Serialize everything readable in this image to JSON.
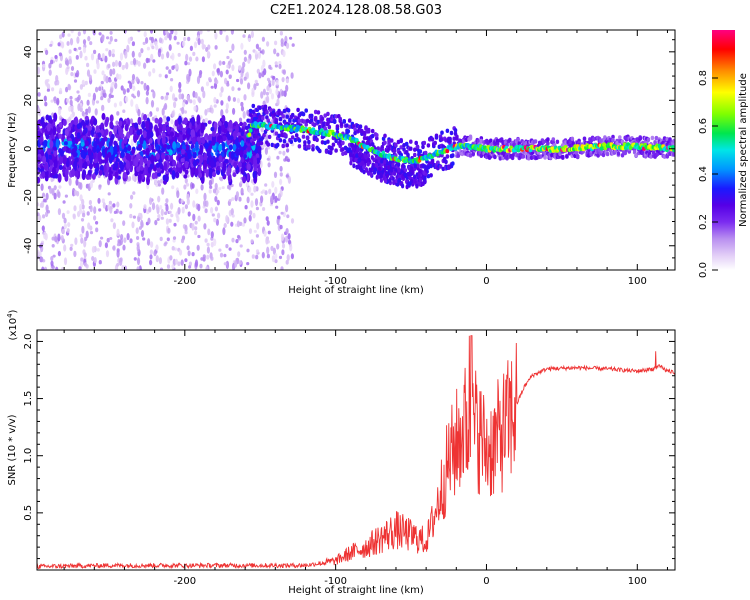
{
  "title": "C2E1.2024.128.08.58.G03",
  "chart_data": [
    {
      "type": "heatmap",
      "panel": "spectrogram",
      "xlabel": "Height of straight line (km)",
      "ylabel": "Frequency (Hz)",
      "xlim": [
        -298,
        125
      ],
      "ylim": [
        -50,
        49
      ],
      "xticks": [
        -200,
        -100,
        0,
        100
      ],
      "yticks": [
        -40,
        -20,
        0,
        20,
        40
      ],
      "colorbar": {
        "label": "Normalized spectral amplitude",
        "range": [
          0,
          1
        ],
        "ticks": [
          0.0,
          0.2,
          0.4,
          0.6,
          0.8
        ],
        "colormap": [
          "#ffffff",
          "#e3cff7",
          "#b98ff0",
          "#7b2cf0",
          "#5500e6",
          "#1a1aff",
          "#0096ff",
          "#00e6e6",
          "#00e64d",
          "#7fff00",
          "#ffff00",
          "#ff8c00",
          "#ff0000",
          "#ff0080"
        ]
      },
      "ridge": {
        "x": [
          -298,
          -250,
          -200,
          -160,
          -155,
          -140,
          -120,
          -100,
          -90,
          -80,
          -70,
          -60,
          -50,
          -40,
          -30,
          -20,
          -10,
          0,
          20,
          50,
          80,
          100,
          125
        ],
        "y": [
          1,
          0,
          1,
          2,
          10,
          9,
          8,
          6,
          4,
          1,
          -2,
          -4,
          -5,
          -4,
          -1,
          1,
          1,
          0,
          0,
          0,
          1,
          1,
          0
        ]
      }
    },
    {
      "type": "line",
      "panel": "snr",
      "xlabel": "Height of straight line (km)",
      "ylabel": "SNR (10 * v/v)",
      "multiplier": "(x10",
      "multiplier_exp": "4",
      "multiplier_close": ")",
      "xlim": [
        -298,
        125
      ],
      "ylim": [
        0,
        2.1
      ],
      "xticks": [
        -200,
        -100,
        0,
        100
      ],
      "yticks": [
        0.5,
        1.0,
        1.5,
        2.0
      ],
      "series": [
        {
          "color": "#ee3333",
          "x": [
            -298,
            -250,
            -200,
            -150,
            -120,
            -100,
            -90,
            -80,
            -70,
            -60,
            -50,
            -40,
            -35,
            -30,
            -25,
            -20,
            -15,
            -10,
            -5,
            0,
            5,
            10,
            15,
            20,
            25,
            30,
            40,
            60,
            80,
            100,
            110,
            115,
            120,
            125
          ],
          "y": [
            0.03,
            0.04,
            0.04,
            0.04,
            0.04,
            0.08,
            0.15,
            0.2,
            0.28,
            0.35,
            0.3,
            0.25,
            0.45,
            0.7,
            0.95,
            1.1,
            1.25,
            1.3,
            1.2,
            1.05,
            1.1,
            1.2,
            1.3,
            1.45,
            1.6,
            1.7,
            1.76,
            1.77,
            1.76,
            1.74,
            1.76,
            1.78,
            1.74,
            1.73
          ]
        }
      ]
    }
  ]
}
